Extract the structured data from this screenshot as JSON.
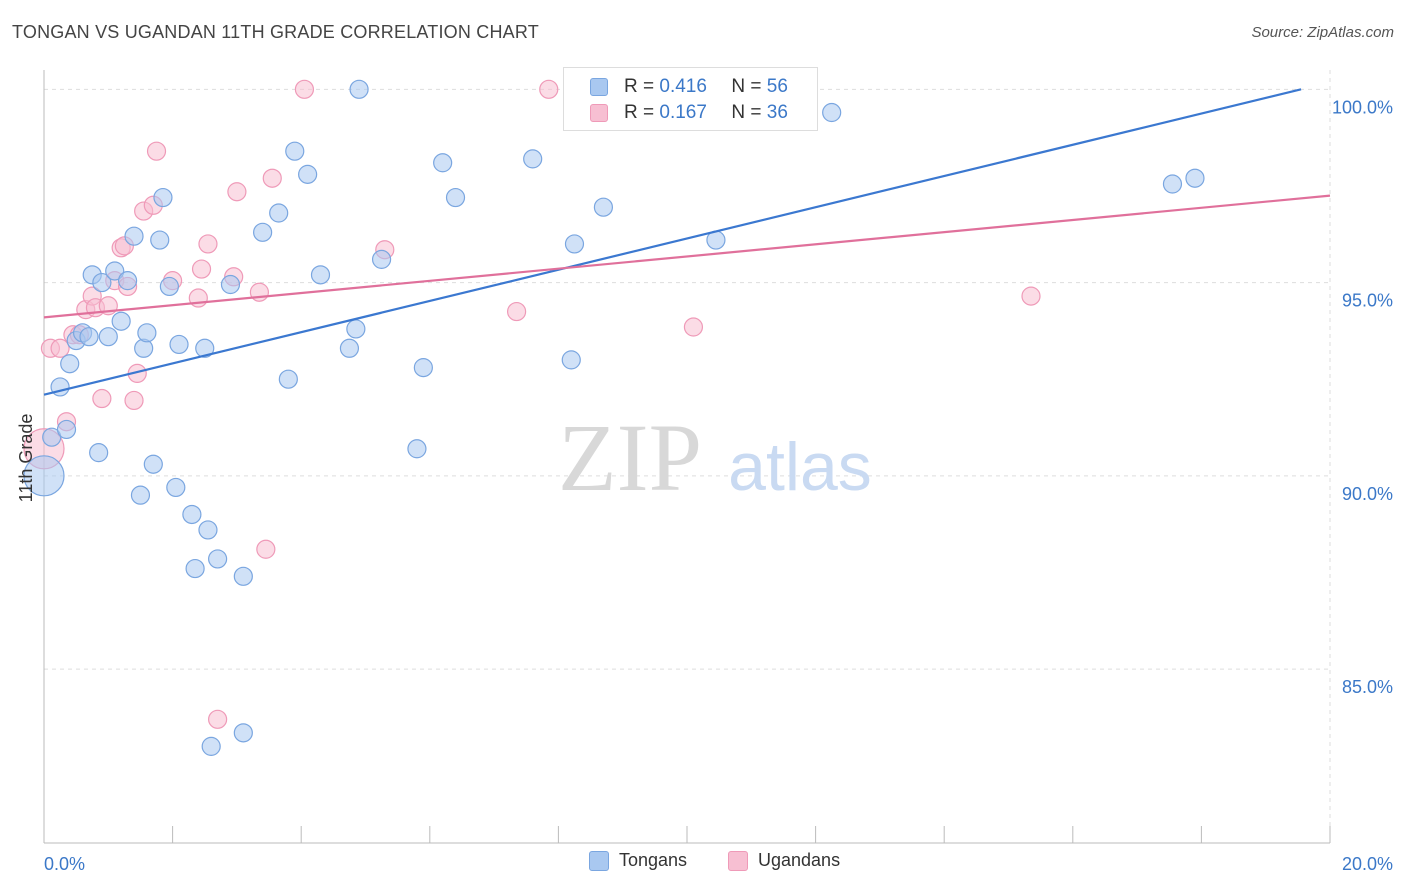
{
  "title": "TONGAN VS UGANDAN 11TH GRADE CORRELATION CHART",
  "source": "Source: ZipAtlas.com",
  "watermark": {
    "zip": "ZIP",
    "atlas": "atlas"
  },
  "legend": {
    "r_label": "R =",
    "n_label": "N =",
    "tongans": {
      "r": "0.416",
      "n": "56"
    },
    "ugandans": {
      "r": "0.167",
      "n": "36"
    }
  },
  "colors": {
    "tongans_fill": "#a9c8f0",
    "tongans_stroke": "#7aa6e0",
    "tongans_line": "#3b78d0",
    "ugandans_fill": "#f7bfd2",
    "ugandans_stroke": "#ef9ab8",
    "ugandans_line": "#e0709b",
    "axis_text": "#3b78c8",
    "grid": "#dddddd"
  },
  "chart_data": {
    "type": "scatter",
    "title": "TONGAN VS UGANDAN 11TH GRADE CORRELATION CHART",
    "xlabel": "",
    "ylabel": "11th Grade",
    "xlim": [
      0,
      20
    ],
    "ylim": [
      80.5,
      100.5
    ],
    "x_tick_labels": [
      "0.0%",
      "20.0%"
    ],
    "y_ticks": [
      85,
      90,
      95,
      100
    ],
    "y_tick_labels": [
      "85.0%",
      "90.0%",
      "95.0%",
      "100.0%"
    ],
    "grid": true,
    "legend_position": "bottom",
    "series": [
      {
        "name": "Tongans",
        "r": 0.416,
        "n": 56,
        "trend": {
          "x": [
            0,
            19.55
          ],
          "y": [
            92.1,
            100.0
          ]
        },
        "points": [
          {
            "x": 0.0,
            "y": 90.0,
            "big": true
          },
          {
            "x": 0.12,
            "y": 91.0
          },
          {
            "x": 0.25,
            "y": 92.3
          },
          {
            "x": 0.35,
            "y": 91.2
          },
          {
            "x": 0.4,
            "y": 92.9
          },
          {
            "x": 0.5,
            "y": 93.5
          },
          {
            "x": 0.6,
            "y": 93.7
          },
          {
            "x": 0.7,
            "y": 93.6
          },
          {
            "x": 0.75,
            "y": 95.2
          },
          {
            "x": 0.85,
            "y": 90.6
          },
          {
            "x": 0.9,
            "y": 95.0
          },
          {
            "x": 1.0,
            "y": 93.6
          },
          {
            "x": 1.1,
            "y": 95.3
          },
          {
            "x": 1.2,
            "y": 94.0
          },
          {
            "x": 1.3,
            "y": 95.05
          },
          {
            "x": 1.4,
            "y": 96.2
          },
          {
            "x": 1.5,
            "y": 89.5
          },
          {
            "x": 1.55,
            "y": 93.3
          },
          {
            "x": 1.6,
            "y": 93.7
          },
          {
            "x": 1.7,
            "y": 90.3
          },
          {
            "x": 1.8,
            "y": 96.1
          },
          {
            "x": 1.85,
            "y": 97.2
          },
          {
            "x": 1.95,
            "y": 94.9
          },
          {
            "x": 2.05,
            "y": 89.7
          },
          {
            "x": 2.1,
            "y": 93.4
          },
          {
            "x": 2.3,
            "y": 89.0
          },
          {
            "x": 2.35,
            "y": 87.6
          },
          {
            "x": 2.5,
            "y": 93.3
          },
          {
            "x": 2.55,
            "y": 88.6
          },
          {
            "x": 2.6,
            "y": 83.0
          },
          {
            "x": 2.7,
            "y": 87.85
          },
          {
            "x": 2.9,
            "y": 94.95
          },
          {
            "x": 3.1,
            "y": 87.4
          },
          {
            "x": 3.1,
            "y": 83.35
          },
          {
            "x": 3.4,
            "y": 96.3
          },
          {
            "x": 3.65,
            "y": 96.8
          },
          {
            "x": 3.8,
            "y": 92.5
          },
          {
            "x": 3.9,
            "y": 98.4
          },
          {
            "x": 4.1,
            "y": 97.8
          },
          {
            "x": 4.3,
            "y": 95.2
          },
          {
            "x": 4.75,
            "y": 93.3
          },
          {
            "x": 4.85,
            "y": 93.8
          },
          {
            "x": 4.9,
            "y": 100.0
          },
          {
            "x": 5.25,
            "y": 95.6
          },
          {
            "x": 5.8,
            "y": 90.7
          },
          {
            "x": 5.9,
            "y": 92.8
          },
          {
            "x": 6.2,
            "y": 98.1
          },
          {
            "x": 6.4,
            "y": 97.2
          },
          {
            "x": 7.6,
            "y": 98.2
          },
          {
            "x": 8.2,
            "y": 93.0
          },
          {
            "x": 8.25,
            "y": 96.0
          },
          {
            "x": 8.7,
            "y": 96.95
          },
          {
            "x": 10.45,
            "y": 96.1
          },
          {
            "x": 12.25,
            "y": 99.4
          },
          {
            "x": 17.55,
            "y": 97.55
          },
          {
            "x": 17.9,
            "y": 97.7
          }
        ]
      },
      {
        "name": "Ugandans",
        "r": 0.167,
        "n": 36,
        "trend": {
          "x": [
            0,
            20
          ],
          "y": [
            94.1,
            97.25
          ]
        },
        "points": [
          {
            "x": 0.0,
            "y": 90.7,
            "big": true
          },
          {
            "x": 0.1,
            "y": 93.3
          },
          {
            "x": 0.25,
            "y": 93.3
          },
          {
            "x": 0.35,
            "y": 91.4
          },
          {
            "x": 0.45,
            "y": 93.65
          },
          {
            "x": 0.55,
            "y": 93.65
          },
          {
            "x": 0.65,
            "y": 94.3
          },
          {
            "x": 0.75,
            "y": 94.65
          },
          {
            "x": 0.8,
            "y": 94.35
          },
          {
            "x": 0.9,
            "y": 92.0
          },
          {
            "x": 1.0,
            "y": 94.4
          },
          {
            "x": 1.1,
            "y": 95.05
          },
          {
            "x": 1.2,
            "y": 95.9
          },
          {
            "x": 1.25,
            "y": 95.95
          },
          {
            "x": 1.3,
            "y": 94.9
          },
          {
            "x": 1.4,
            "y": 91.95
          },
          {
            "x": 1.45,
            "y": 92.65
          },
          {
            "x": 1.55,
            "y": 96.85
          },
          {
            "x": 1.7,
            "y": 97.0
          },
          {
            "x": 1.75,
            "y": 98.4
          },
          {
            "x": 2.0,
            "y": 95.05
          },
          {
            "x": 2.4,
            "y": 94.6
          },
          {
            "x": 2.45,
            "y": 95.35
          },
          {
            "x": 2.55,
            "y": 96.0
          },
          {
            "x": 2.7,
            "y": 83.7
          },
          {
            "x": 2.95,
            "y": 95.15
          },
          {
            "x": 3.0,
            "y": 97.35
          },
          {
            "x": 3.35,
            "y": 94.75
          },
          {
            "x": 3.45,
            "y": 88.1
          },
          {
            "x": 3.55,
            "y": 97.7
          },
          {
            "x": 4.05,
            "y": 100.0
          },
          {
            "x": 5.3,
            "y": 95.85
          },
          {
            "x": 7.35,
            "y": 94.25
          },
          {
            "x": 7.85,
            "y": 100.0
          },
          {
            "x": 10.1,
            "y": 93.85
          },
          {
            "x": 15.35,
            "y": 94.65
          }
        ]
      }
    ]
  }
}
